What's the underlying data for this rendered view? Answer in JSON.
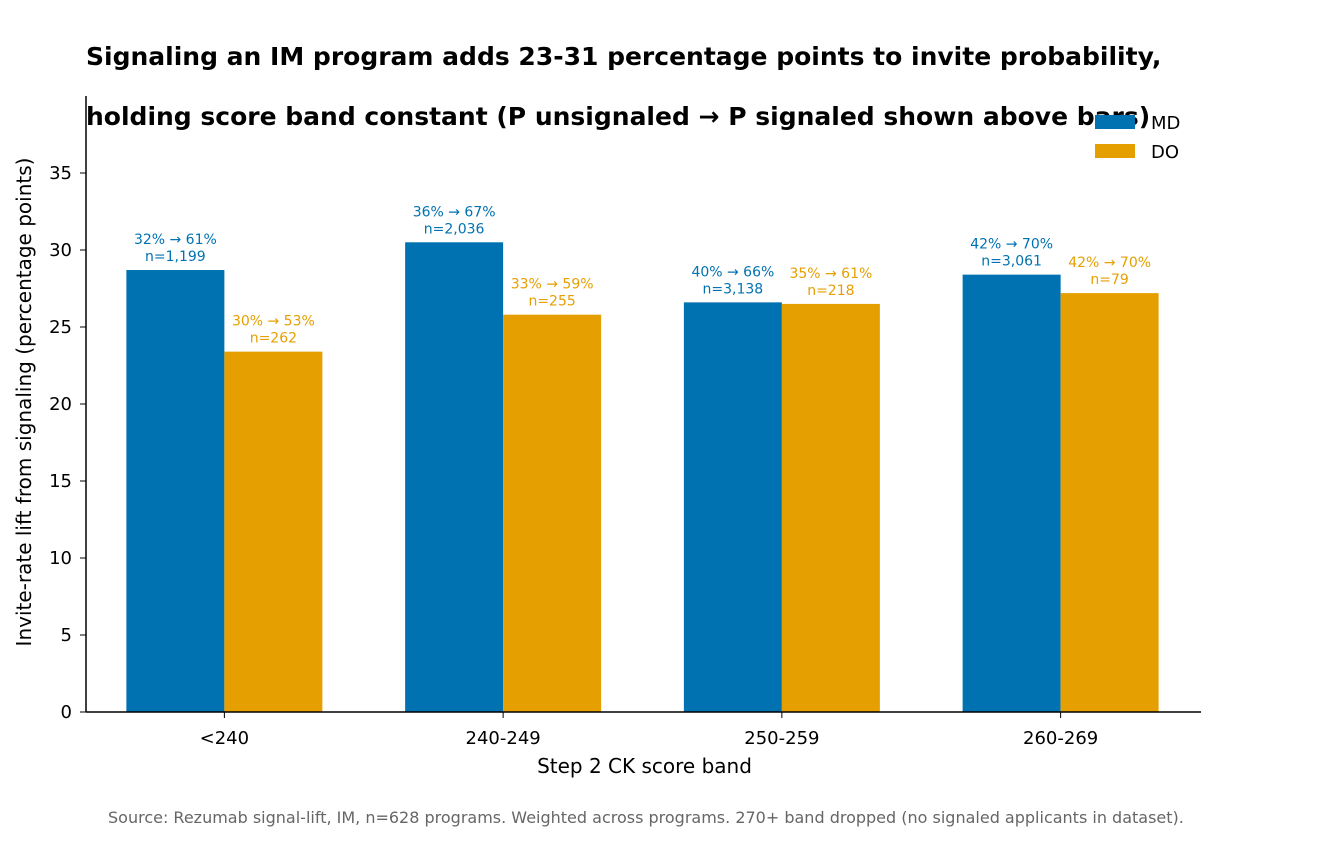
{
  "title": {
    "line1": "Signaling an IM program adds 23-31 percentage points to invite probability,",
    "line2": "holding score band constant (P unsignaled → P signaled shown above bars)"
  },
  "source": "Source: Rezumab signal-lift, IM, n=628 programs. Weighted across programs. 270+ band dropped (no signaled applicants in dataset).",
  "chart_data": {
    "type": "bar",
    "categories": [
      "<240",
      "240-249",
      "250-259",
      "260-269"
    ],
    "xlabel": "Step 2 CK score band",
    "ylabel": "Invite-rate lift from signaling (percentage points)",
    "ylim": [
      0,
      40
    ],
    "yticks": [
      0,
      5,
      10,
      15,
      20,
      25,
      30,
      35
    ],
    "grid": false,
    "legend_position": "top-right",
    "series": [
      {
        "name": "MD",
        "color": "#0072b2",
        "values": [
          28.7,
          30.5,
          26.6,
          28.4
        ],
        "labels": [
          "32% → 61%",
          "36% → 67%",
          "40% → 66%",
          "42% → 70%"
        ],
        "n_labels": [
          "n=1,199",
          "n=2,036",
          "n=3,138",
          "n=3,061"
        ]
      },
      {
        "name": "DO",
        "color": "#e69f00",
        "values": [
          23.4,
          25.8,
          26.5,
          27.2
        ],
        "labels": [
          "30% → 53%",
          "33% → 59%",
          "35% → 61%",
          "42% → 70%"
        ],
        "n_labels": [
          "n=262",
          "n=255",
          "n=218",
          "n=79"
        ]
      }
    ]
  }
}
